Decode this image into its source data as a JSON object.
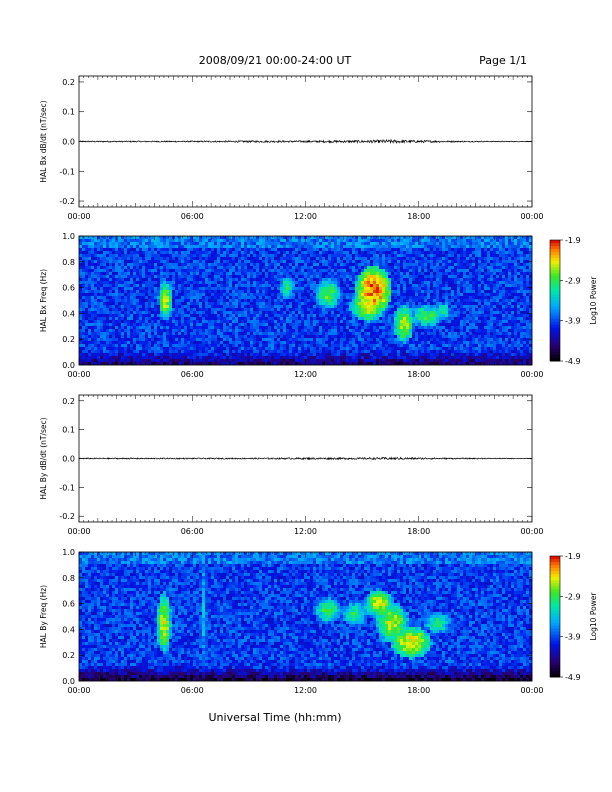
{
  "header": {
    "title": "2008/09/21  00:00-24:00 UT",
    "page": "Page 1/1"
  },
  "xlabel": "Universal Time (hh:mm)",
  "chart_data": [
    {
      "type": "line",
      "ylabel": "HAL Bx dB/dt (nT/sec)",
      "ylim": [
        -0.22,
        0.22
      ],
      "yticks": [
        "0.2",
        "0.1",
        "0.0",
        "-0.1",
        "-0.2"
      ],
      "ytick_values": [
        0.2,
        0.1,
        0.0,
        -0.1,
        -0.2
      ],
      "xlim": [
        0,
        24
      ],
      "xticks": [
        "00:00",
        "06:00",
        "12:00",
        "18:00",
        "00:00"
      ],
      "series": [
        {
          "x": [
            0,
            6,
            9,
            12,
            15,
            16.5,
            18,
            20,
            24
          ],
          "amplitude": [
            0.002,
            0.002,
            0.003,
            0.003,
            0.004,
            0.006,
            0.004,
            0.002,
            0.001
          ]
        }
      ]
    },
    {
      "type": "heatmap",
      "ylabel": "HAL Bx Freq (Hz)",
      "ylim": [
        0,
        1.0
      ],
      "yticks": [
        "1.0",
        "0.8",
        "0.6",
        "0.4",
        "0.2",
        "0.0"
      ],
      "ytick_values": [
        1.0,
        0.8,
        0.6,
        0.4,
        0.2,
        0.0
      ],
      "xlim": [
        0,
        24
      ],
      "xticks": [
        "00:00",
        "06:00",
        "12:00",
        "18:00",
        "00:00"
      ],
      "colorbar": {
        "label": "Log10 Power",
        "ticks": [
          "-1.9",
          "-2.9",
          "-3.9",
          "-4.9"
        ],
        "range": [
          -4.9,
          -1.9
        ]
      },
      "features": [
        {
          "t": 4.6,
          "f": 0.5,
          "dt": 0.25,
          "df": 0.1,
          "power": -2.6
        },
        {
          "t": 11.0,
          "f": 0.6,
          "dt": 0.3,
          "df": 0.06,
          "power": -3.0
        },
        {
          "t": 13.2,
          "f": 0.55,
          "dt": 0.45,
          "df": 0.08,
          "power": -2.8
        },
        {
          "t": 15.6,
          "f": 0.58,
          "dt": 0.6,
          "df": 0.12,
          "power": -2.1
        },
        {
          "t": 15.3,
          "f": 0.46,
          "dt": 0.6,
          "df": 0.08,
          "power": -2.5
        },
        {
          "t": 17.2,
          "f": 0.32,
          "dt": 0.35,
          "df": 0.1,
          "power": -2.6
        },
        {
          "t": 18.4,
          "f": 0.38,
          "dt": 0.6,
          "df": 0.06,
          "power": -2.9
        },
        {
          "t": 19.3,
          "f": 0.42,
          "dt": 0.3,
          "df": 0.05,
          "power": -3.1
        }
      ]
    },
    {
      "type": "line",
      "ylabel": "HAL By dB/dt (nT/sec)",
      "ylim": [
        -0.22,
        0.22
      ],
      "yticks": [
        "0.2",
        "0.1",
        "0.0",
        "-0.1",
        "-0.2"
      ],
      "ytick_values": [
        0.2,
        0.1,
        0.0,
        -0.1,
        -0.2
      ],
      "xlim": [
        0,
        24
      ],
      "xticks": [
        "00:00",
        "06:00",
        "12:00",
        "18:00",
        "00:00"
      ],
      "series": [
        {
          "x": [
            0,
            6,
            9,
            12,
            15,
            16.5,
            18,
            20,
            24
          ],
          "amplitude": [
            0.002,
            0.002,
            0.002,
            0.003,
            0.003,
            0.004,
            0.003,
            0.002,
            0.001
          ]
        }
      ]
    },
    {
      "type": "heatmap",
      "ylabel": "HAL By Freq (Hz)",
      "ylim": [
        0,
        1.0
      ],
      "yticks": [
        "1.0",
        "0.8",
        "0.6",
        "0.4",
        "0.2",
        "0.0"
      ],
      "ytick_values": [
        1.0,
        0.8,
        0.6,
        0.4,
        0.2,
        0.0
      ],
      "xlim": [
        0,
        24
      ],
      "xticks": [
        "00:00",
        "06:00",
        "12:00",
        "18:00",
        "00:00"
      ],
      "colorbar": {
        "label": "Log10 Power",
        "ticks": [
          "-1.9",
          "-2.9",
          "-3.9",
          "-4.9"
        ],
        "range": [
          -4.9,
          -1.9
        ]
      },
      "features": [
        {
          "t": 4.5,
          "f": 0.45,
          "dt": 0.25,
          "df": 0.15,
          "power": -2.5
        },
        {
          "t": 6.6,
          "f": 0.55,
          "dt": 0.15,
          "df": 0.35,
          "power": -3.4
        },
        {
          "t": 13.2,
          "f": 0.55,
          "dt": 0.5,
          "df": 0.07,
          "power": -2.9
        },
        {
          "t": 14.6,
          "f": 0.52,
          "dt": 0.5,
          "df": 0.07,
          "power": -3.0
        },
        {
          "t": 15.9,
          "f": 0.6,
          "dt": 0.5,
          "df": 0.07,
          "power": -2.5
        },
        {
          "t": 16.6,
          "f": 0.45,
          "dt": 0.6,
          "df": 0.1,
          "power": -2.6
        },
        {
          "t": 17.6,
          "f": 0.3,
          "dt": 0.7,
          "df": 0.08,
          "power": -2.4
        },
        {
          "t": 19.0,
          "f": 0.45,
          "dt": 0.5,
          "df": 0.06,
          "power": -3.0
        }
      ]
    }
  ]
}
